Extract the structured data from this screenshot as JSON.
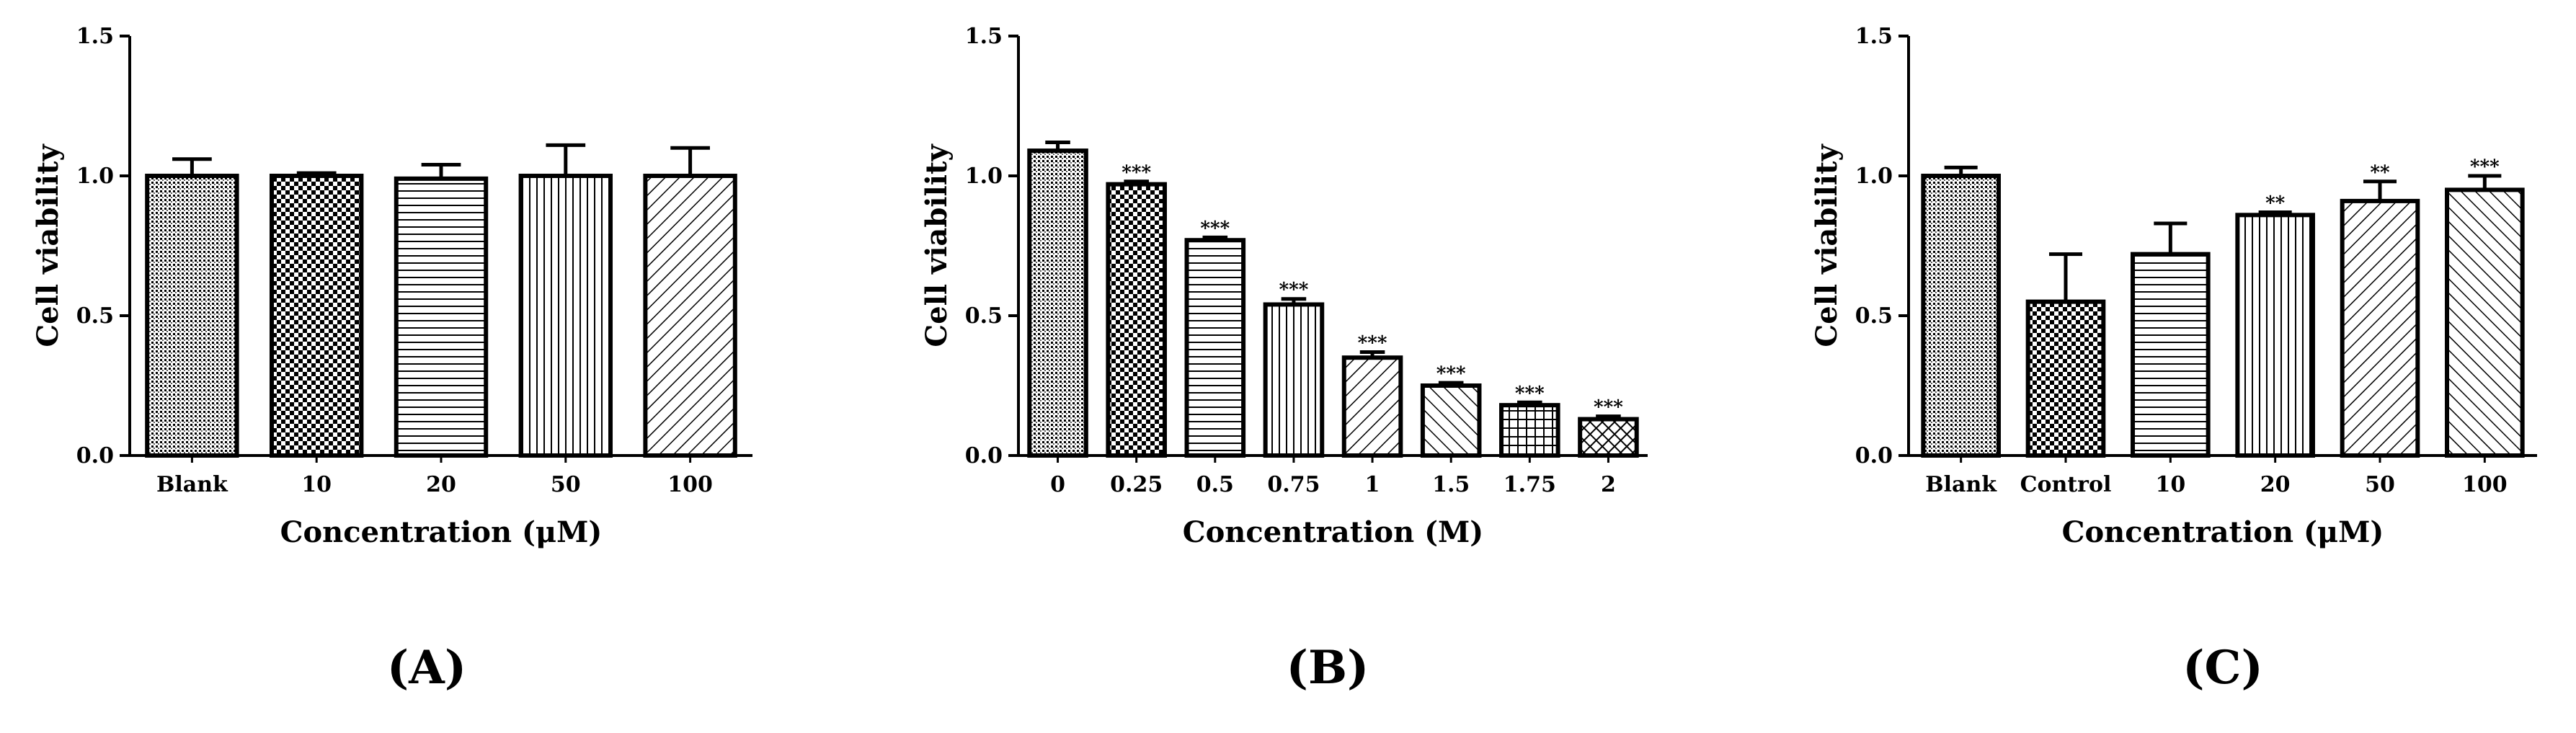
{
  "colors": {
    "ink": "#000000",
    "background": "#ffffff"
  },
  "chart_data": [
    {
      "type": "bar",
      "panel_label": "(A)",
      "title": "",
      "xlabel": "Concentration (μM)",
      "ylabel": "Cell viability",
      "ylim": [
        0,
        1.5
      ],
      "yticks": [
        "0.0",
        "0.5",
        "1.0",
        "1.5"
      ],
      "grid": false,
      "categories": [
        "Blank",
        "10",
        "20",
        "50",
        "100"
      ],
      "values": [
        1.0,
        1.0,
        0.99,
        1.0,
        1.0
      ],
      "errors": [
        0.06,
        0.01,
        0.05,
        0.11,
        0.1
      ],
      "significance": [
        "",
        "",
        "",
        "",
        ""
      ],
      "patterns": [
        "dots",
        "checker",
        "hlines",
        "vlines",
        "diag-fwd"
      ]
    },
    {
      "type": "bar",
      "panel_label": "(B)",
      "title": "",
      "xlabel": "Concentration (M)",
      "ylabel": "Cell viability",
      "ylim": [
        0,
        1.5
      ],
      "yticks": [
        "0.0",
        "0.5",
        "1.0",
        "1.5"
      ],
      "grid": false,
      "categories": [
        "0",
        "0.25",
        "0.5",
        "0.75",
        "1",
        "1.5",
        "1.75",
        "2"
      ],
      "values": [
        1.09,
        0.97,
        0.77,
        0.54,
        0.35,
        0.25,
        0.18,
        0.13
      ],
      "errors": [
        0.03,
        0.01,
        0.01,
        0.02,
        0.02,
        0.01,
        0.01,
        0.01
      ],
      "significance": [
        "",
        "***",
        "***",
        "***",
        "***",
        "***",
        "***",
        "***"
      ],
      "patterns": [
        "dots",
        "checker",
        "hlines",
        "vlines",
        "diag-fwd",
        "diag-back",
        "grid",
        "crosshatch"
      ]
    },
    {
      "type": "bar",
      "panel_label": "(C)",
      "title": "",
      "xlabel": "Concentration (μM)",
      "ylabel": "Cell viability",
      "ylim": [
        0,
        1.5
      ],
      "yticks": [
        "0.0",
        "0.5",
        "1.0",
        "1.5"
      ],
      "grid": false,
      "categories": [
        "Blank",
        "Control",
        "10",
        "20",
        "50",
        "100"
      ],
      "values": [
        1.0,
        0.55,
        0.72,
        0.86,
        0.91,
        0.95
      ],
      "errors": [
        0.03,
        0.17,
        0.11,
        0.01,
        0.07,
        0.05
      ],
      "significance": [
        "",
        "",
        "",
        "**",
        "**",
        "***"
      ],
      "patterns": [
        "dots",
        "checker",
        "hlines",
        "vlines",
        "diag-fwd",
        "diag-back"
      ]
    }
  ]
}
